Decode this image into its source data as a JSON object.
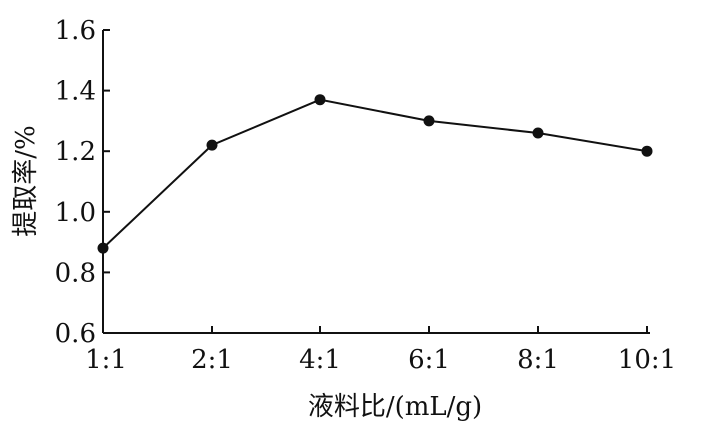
{
  "chart_data": {
    "type": "line",
    "title": "",
    "xlabel": "液料比/(mL/g)",
    "ylabel": "提取率/%",
    "categories": [
      "1:1",
      "2:1",
      "4:1",
      "6:1",
      "8:1",
      "10:1"
    ],
    "y_ticks": [
      "0.6",
      "0.8",
      "1.0",
      "1.2",
      "1.4",
      "1.6"
    ],
    "ylim": [
      0.6,
      1.6
    ],
    "grid": false,
    "legend": "none",
    "series": [
      {
        "values": [
          0.88,
          1.22,
          1.37,
          1.3,
          1.26,
          1.2
        ]
      }
    ]
  }
}
